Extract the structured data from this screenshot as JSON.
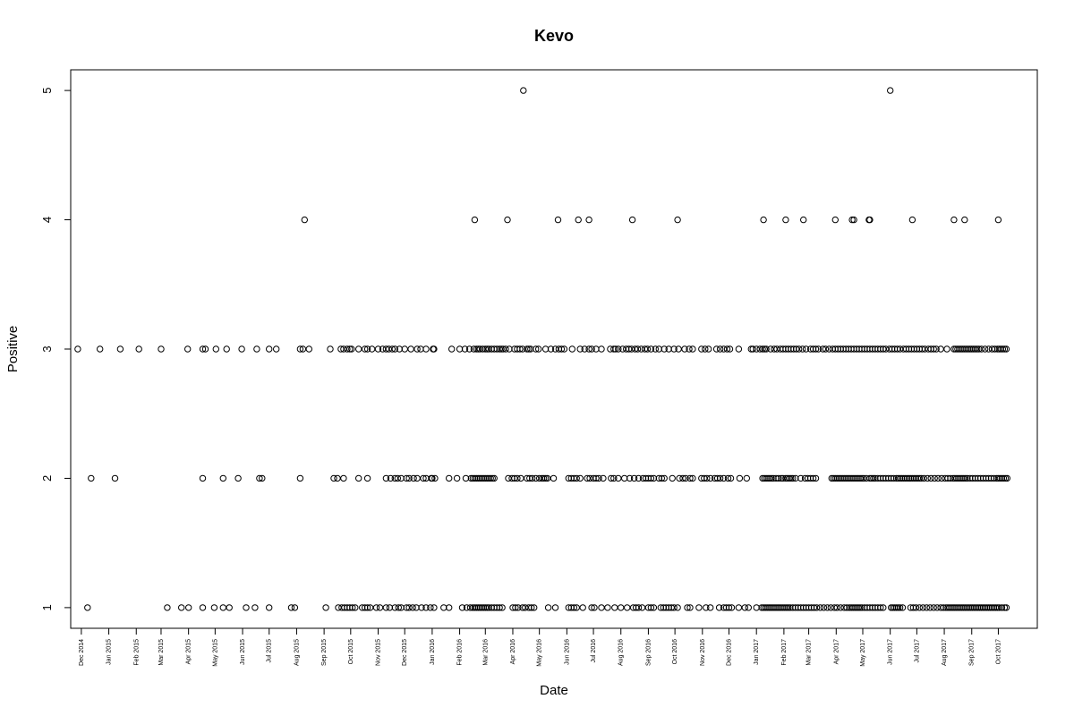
{
  "chart_data": {
    "type": "scatter",
    "title": "Kevo",
    "xlabel": "Date",
    "ylabel": "Positive",
    "xlim": [
      "2014-11-19",
      "2017-11-14"
    ],
    "ylim": [
      0.84,
      5.16
    ],
    "yticks": [
      1,
      2,
      3,
      4,
      5
    ],
    "xticks": [
      {
        "date": "2014-12-01",
        "label": "Dec 2014"
      },
      {
        "date": "2015-01-01",
        "label": "Jan 2015"
      },
      {
        "date": "2015-02-01",
        "label": "Feb 2015"
      },
      {
        "date": "2015-03-01",
        "label": "Mar 2015"
      },
      {
        "date": "2015-04-01",
        "label": "Apr 2015"
      },
      {
        "date": "2015-05-01",
        "label": "May 2015"
      },
      {
        "date": "2015-06-01",
        "label": "Jun 2015"
      },
      {
        "date": "2015-07-01",
        "label": "Jul 2015"
      },
      {
        "date": "2015-08-01",
        "label": "Aug 2015"
      },
      {
        "date": "2015-09-01",
        "label": "Sep 2015"
      },
      {
        "date": "2015-10-01",
        "label": "Oct 2015"
      },
      {
        "date": "2015-11-01",
        "label": "Nov 2015"
      },
      {
        "date": "2015-12-01",
        "label": "Dec 2015"
      },
      {
        "date": "2016-01-01",
        "label": "Jan 2016"
      },
      {
        "date": "2016-02-01",
        "label": "Feb 2016"
      },
      {
        "date": "2016-03-01",
        "label": "Mar 2016"
      },
      {
        "date": "2016-04-01",
        "label": "Apr 2016"
      },
      {
        "date": "2016-05-01",
        "label": "May 2016"
      },
      {
        "date": "2016-06-01",
        "label": "Jun 2016"
      },
      {
        "date": "2016-07-01",
        "label": "Jul 2016"
      },
      {
        "date": "2016-08-01",
        "label": "Aug 2016"
      },
      {
        "date": "2016-09-01",
        "label": "Sep 2016"
      },
      {
        "date": "2016-10-01",
        "label": "Oct 2016"
      },
      {
        "date": "2016-11-01",
        "label": "Nov 2016"
      },
      {
        "date": "2016-12-01",
        "label": "Dec 2016"
      },
      {
        "date": "2017-01-01",
        "label": "Jan 2017"
      },
      {
        "date": "2017-02-01",
        "label": "Feb 2017"
      },
      {
        "date": "2017-03-01",
        "label": "Mar 2017"
      },
      {
        "date": "2017-04-01",
        "label": "Apr 2017"
      },
      {
        "date": "2017-05-01",
        "label": "May 2017"
      },
      {
        "date": "2017-06-01",
        "label": "Jun 2017"
      },
      {
        "date": "2017-07-01",
        "label": "Jul 2017"
      },
      {
        "date": "2017-08-01",
        "label": "Aug 2017"
      },
      {
        "date": "2017-09-01",
        "label": "Sep 2017"
      },
      {
        "date": "2017-10-01",
        "label": "Oct 2017"
      }
    ],
    "grid": false,
    "legend": "none",
    "marker": "open-circle",
    "series": [
      {
        "y": 5,
        "x": [
          "2016-04-13",
          "2017-06-01"
        ]
      },
      {
        "y": 4,
        "x": [
          "2015-08-10",
          "2016-02-18",
          "2016-03-26",
          "2016-05-22",
          "2016-06-14",
          "2016-06-26",
          "2016-08-14",
          "2016-10-04",
          "2017-01-09",
          "2017-02-03",
          "2017-02-23",
          "2017-03-31",
          "2017-04-19",
          "2017-04-21",
          "2017-05-08",
          "2017-05-09",
          "2017-06-26",
          "2017-08-12",
          "2017-08-24",
          "2017-10-01"
        ]
      },
      {
        "y": 3,
        "x": [
          "2014-11-27",
          "2014-12-22",
          "2015-01-14",
          "2015-02-04",
          "2015-03-01",
          "2015-03-31",
          "2015-04-17",
          "2015-04-20",
          "2015-05-02",
          "2015-05-14",
          "2015-05-31",
          "2015-06-17",
          "2015-07-01",
          "2015-07-09",
          "2015-08-05",
          "2015-08-08",
          "2015-08-15",
          "2015-09-08",
          "2015-09-20",
          "2015-09-23",
          "2015-09-27",
          "2015-09-30",
          "2015-10-02",
          "2015-10-10",
          "2015-10-17",
          "2015-10-20",
          "2015-10-25",
          "2015-11-01",
          "2015-11-06",
          "2015-11-10",
          "2015-11-13",
          "2015-11-17",
          "2015-11-20",
          "2015-11-25",
          "2015-12-01",
          "2015-12-08",
          "2015-12-15",
          "2015-12-19",
          "2015-12-25",
          "2016-01-02",
          "2016-01-03",
          "2016-01-23",
          "2016-02-01",
          "2016-02-07",
          "2016-02-12",
          "2016-02-17",
          "2016-02-20",
          "2016-02-22",
          "2016-02-24",
          "2016-02-27",
          "2016-03-01",
          "2016-03-03",
          "2016-03-05",
          "2016-03-08",
          "2016-03-11",
          "2016-03-14",
          "2016-03-17",
          "2016-03-19",
          "2016-03-21",
          "2016-03-24",
          "2016-03-28",
          "2016-04-03",
          "2016-04-06",
          "2016-04-09",
          "2016-04-12",
          "2016-04-17",
          "2016-04-19",
          "2016-04-21",
          "2016-04-27",
          "2016-04-30",
          "2016-05-08",
          "2016-05-14",
          "2016-05-19",
          "2016-05-23",
          "2016-05-26",
          "2016-05-29",
          "2016-06-07",
          "2016-06-16",
          "2016-06-21",
          "2016-06-26",
          "2016-06-29",
          "2016-07-04",
          "2016-07-10",
          "2016-07-20",
          "2016-07-24",
          "2016-07-26",
          "2016-07-29",
          "2016-08-03",
          "2016-08-07",
          "2016-08-10",
          "2016-08-13",
          "2016-08-17",
          "2016-08-20",
          "2016-08-24",
          "2016-08-28",
          "2016-08-31",
          "2016-09-04",
          "2016-09-09",
          "2016-09-13",
          "2016-09-19",
          "2016-09-24",
          "2016-09-30",
          "2016-10-05",
          "2016-10-12",
          "2016-10-17",
          "2016-10-21",
          "2016-10-31",
          "2016-11-04",
          "2016-11-08",
          "2016-11-17",
          "2016-11-21",
          "2016-11-25",
          "2016-11-29",
          "2016-12-02",
          "2016-12-12",
          "2016-12-26",
          "2016-12-28",
          "2017-01-01",
          "2017-01-05",
          "2017-01-08",
          "2017-01-10",
          "2017-01-12",
          "2017-01-17",
          "2017-01-21",
          "2017-01-24",
          "2017-01-28",
          "2017-01-31",
          "2017-02-03",
          "2017-02-06",
          "2017-02-09",
          "2017-02-12",
          "2017-02-15",
          "2017-02-18",
          "2017-02-22",
          "2017-02-26",
          "2017-03-03",
          "2017-03-06",
          "2017-03-09",
          "2017-03-12",
          "2017-03-17",
          "2017-03-20",
          "2017-03-24",
          "2017-03-28",
          "2017-03-31",
          "2017-04-03",
          "2017-04-06",
          "2017-04-09",
          "2017-04-12",
          "2017-04-15",
          "2017-04-18",
          "2017-04-21",
          "2017-04-24",
          "2017-04-27",
          "2017-04-30",
          "2017-05-03",
          "2017-05-06",
          "2017-05-09",
          "2017-05-12",
          "2017-05-15",
          "2017-05-18",
          "2017-05-21",
          "2017-05-24",
          "2017-05-27",
          "2017-05-31",
          "2017-06-03",
          "2017-06-06",
          "2017-06-09",
          "2017-06-12",
          "2017-06-16",
          "2017-06-19",
          "2017-06-22",
          "2017-06-25",
          "2017-06-28",
          "2017-07-01",
          "2017-07-04",
          "2017-07-07",
          "2017-07-10",
          "2017-07-14",
          "2017-07-17",
          "2017-07-20",
          "2017-07-23",
          "2017-07-28",
          "2017-08-04",
          "2017-08-12",
          "2017-08-14",
          "2017-08-16",
          "2017-08-18",
          "2017-08-20",
          "2017-08-22",
          "2017-08-24",
          "2017-08-26",
          "2017-08-28",
          "2017-08-30",
          "2017-09-01",
          "2017-09-03",
          "2017-09-05",
          "2017-09-07",
          "2017-09-09",
          "2017-09-12",
          "2017-09-16",
          "2017-09-20",
          "2017-09-24",
          "2017-09-27",
          "2017-09-30",
          "2017-10-02",
          "2017-10-04",
          "2017-10-06",
          "2017-10-08",
          "2017-10-10"
        ]
      },
      {
        "y": 2,
        "x": [
          "2014-12-12",
          "2015-01-08",
          "2015-04-17",
          "2015-05-10",
          "2015-05-27",
          "2015-06-20",
          "2015-06-23",
          "2015-08-05",
          "2015-09-12",
          "2015-09-16",
          "2015-09-23",
          "2015-10-10",
          "2015-10-20",
          "2015-11-10",
          "2015-11-15",
          "2015-11-20",
          "2015-11-23",
          "2015-11-27",
          "2015-12-03",
          "2015-12-06",
          "2015-12-11",
          "2015-12-15",
          "2015-12-22",
          "2015-12-25",
          "2015-12-31",
          "2016-01-01",
          "2016-01-04",
          "2016-01-20",
          "2016-01-29",
          "2016-02-08",
          "2016-02-14",
          "2016-02-16",
          "2016-02-18",
          "2016-02-20",
          "2016-02-22",
          "2016-02-24",
          "2016-02-26",
          "2016-02-28",
          "2016-03-01",
          "2016-03-03",
          "2016-03-05",
          "2016-03-07",
          "2016-03-09",
          "2016-03-11",
          "2016-03-27",
          "2016-03-31",
          "2016-04-03",
          "2016-04-06",
          "2016-04-10",
          "2016-04-17",
          "2016-04-20",
          "2016-04-23",
          "2016-04-27",
          "2016-05-01",
          "2016-05-04",
          "2016-05-06",
          "2016-05-08",
          "2016-05-10",
          "2016-05-17",
          "2016-06-03",
          "2016-06-06",
          "2016-06-09",
          "2016-06-12",
          "2016-06-16",
          "2016-06-24",
          "2016-06-27",
          "2016-07-01",
          "2016-07-04",
          "2016-07-07",
          "2016-07-12",
          "2016-07-21",
          "2016-07-24",
          "2016-07-29",
          "2016-08-05",
          "2016-08-11",
          "2016-08-16",
          "2016-08-21",
          "2016-08-26",
          "2016-08-29",
          "2016-09-01",
          "2016-09-04",
          "2016-09-07",
          "2016-09-13",
          "2016-09-16",
          "2016-09-19",
          "2016-09-28",
          "2016-10-06",
          "2016-10-10",
          "2016-10-13",
          "2016-10-18",
          "2016-10-21",
          "2016-10-31",
          "2016-11-03",
          "2016-11-06",
          "2016-11-10",
          "2016-11-15",
          "2016-11-18",
          "2016-11-21",
          "2016-11-25",
          "2016-11-30",
          "2016-12-03",
          "2016-12-13",
          "2016-12-21",
          "2017-01-08",
          "2017-01-10",
          "2017-01-12",
          "2017-01-14",
          "2017-01-16",
          "2017-01-18",
          "2017-01-20",
          "2017-01-23",
          "2017-01-26",
          "2017-01-29",
          "2017-01-31",
          "2017-02-03",
          "2017-02-05",
          "2017-02-07",
          "2017-02-09",
          "2017-02-11",
          "2017-02-14",
          "2017-02-20",
          "2017-02-25",
          "2017-02-28",
          "2017-03-03",
          "2017-03-06",
          "2017-03-09",
          "2017-03-27",
          "2017-03-29",
          "2017-03-31",
          "2017-04-02",
          "2017-04-04",
          "2017-04-06",
          "2017-04-08",
          "2017-04-10",
          "2017-04-12",
          "2017-04-14",
          "2017-04-16",
          "2017-04-18",
          "2017-04-20",
          "2017-04-22",
          "2017-04-24",
          "2017-04-26",
          "2017-04-28",
          "2017-04-30",
          "2017-05-02",
          "2017-05-05",
          "2017-05-09",
          "2017-05-11",
          "2017-05-13",
          "2017-05-15",
          "2017-05-18",
          "2017-05-21",
          "2017-05-24",
          "2017-05-27",
          "2017-05-30",
          "2017-06-02",
          "2017-06-05",
          "2017-06-08",
          "2017-06-10",
          "2017-06-12",
          "2017-06-14",
          "2017-06-16",
          "2017-06-18",
          "2017-06-20",
          "2017-06-22",
          "2017-06-24",
          "2017-06-26",
          "2017-06-28",
          "2017-06-30",
          "2017-07-02",
          "2017-07-04",
          "2017-07-06",
          "2017-07-09",
          "2017-07-13",
          "2017-07-17",
          "2017-07-21",
          "2017-07-25",
          "2017-07-29",
          "2017-08-02",
          "2017-08-05",
          "2017-08-08",
          "2017-08-11",
          "2017-08-13",
          "2017-08-15",
          "2017-08-17",
          "2017-08-19",
          "2017-08-21",
          "2017-08-23",
          "2017-08-25",
          "2017-08-27",
          "2017-08-30",
          "2017-09-02",
          "2017-09-05",
          "2017-09-08",
          "2017-09-11",
          "2017-09-14",
          "2017-09-17",
          "2017-09-20",
          "2017-09-23",
          "2017-09-26",
          "2017-09-29",
          "2017-10-01",
          "2017-10-03",
          "2017-10-05",
          "2017-10-07",
          "2017-10-09",
          "2017-10-11"
        ]
      },
      {
        "y": 1,
        "x": [
          "2014-12-08",
          "2015-03-08",
          "2015-03-24",
          "2015-04-01",
          "2015-04-17",
          "2015-04-30",
          "2015-05-10",
          "2015-05-17",
          "2015-06-05",
          "2015-06-15",
          "2015-07-01",
          "2015-07-26",
          "2015-07-30",
          "2015-09-03",
          "2015-09-17",
          "2015-09-21",
          "2015-09-24",
          "2015-09-27",
          "2015-09-30",
          "2015-10-03",
          "2015-10-06",
          "2015-10-14",
          "2015-10-17",
          "2015-10-20",
          "2015-10-23",
          "2015-10-30",
          "2015-11-03",
          "2015-11-10",
          "2015-11-14",
          "2015-11-20",
          "2015-11-24",
          "2015-11-27",
          "2015-12-03",
          "2015-12-06",
          "2015-12-10",
          "2015-12-14",
          "2015-12-20",
          "2015-12-25",
          "2015-12-30",
          "2016-01-03",
          "2016-01-14",
          "2016-01-20",
          "2016-02-04",
          "2016-02-09",
          "2016-02-13",
          "2016-02-16",
          "2016-02-18",
          "2016-02-20",
          "2016-02-22",
          "2016-02-24",
          "2016-02-26",
          "2016-02-28",
          "2016-03-01",
          "2016-03-03",
          "2016-03-05",
          "2016-03-08",
          "2016-03-11",
          "2016-03-14",
          "2016-03-17",
          "2016-03-20",
          "2016-04-01",
          "2016-04-04",
          "2016-04-07",
          "2016-04-12",
          "2016-04-15",
          "2016-04-19",
          "2016-04-22",
          "2016-04-25",
          "2016-05-11",
          "2016-05-19",
          "2016-06-03",
          "2016-06-06",
          "2016-06-09",
          "2016-06-12",
          "2016-06-19",
          "2016-06-29",
          "2016-07-02",
          "2016-07-10",
          "2016-07-17",
          "2016-07-25",
          "2016-08-01",
          "2016-08-08",
          "2016-08-15",
          "2016-08-18",
          "2016-08-21",
          "2016-08-25",
          "2016-09-01",
          "2016-09-04",
          "2016-09-07",
          "2016-09-15",
          "2016-09-18",
          "2016-09-21",
          "2016-09-24",
          "2016-09-27",
          "2016-09-30",
          "2016-10-04",
          "2016-10-15",
          "2016-10-18",
          "2016-10-28",
          "2016-11-05",
          "2016-11-10",
          "2016-11-20",
          "2016-11-25",
          "2016-11-28",
          "2016-12-01",
          "2016-12-04",
          "2016-12-12",
          "2016-12-19",
          "2016-12-23",
          "2017-01-01",
          "2017-01-07",
          "2017-01-09",
          "2017-01-11",
          "2017-01-13",
          "2017-01-15",
          "2017-01-17",
          "2017-01-19",
          "2017-01-21",
          "2017-01-23",
          "2017-01-25",
          "2017-01-27",
          "2017-01-29",
          "2017-01-31",
          "2017-02-02",
          "2017-02-04",
          "2017-02-06",
          "2017-02-08",
          "2017-02-11",
          "2017-02-14",
          "2017-02-17",
          "2017-02-20",
          "2017-02-23",
          "2017-02-26",
          "2017-03-01",
          "2017-03-04",
          "2017-03-07",
          "2017-03-10",
          "2017-03-14",
          "2017-03-18",
          "2017-03-22",
          "2017-03-26",
          "2017-03-30",
          "2017-04-02",
          "2017-04-06",
          "2017-04-10",
          "2017-04-13",
          "2017-04-16",
          "2017-04-18",
          "2017-04-20",
          "2017-04-22",
          "2017-04-24",
          "2017-04-26",
          "2017-04-28",
          "2017-04-30",
          "2017-05-03",
          "2017-05-06",
          "2017-05-09",
          "2017-05-12",
          "2017-05-15",
          "2017-05-18",
          "2017-05-21",
          "2017-05-24",
          "2017-06-02",
          "2017-06-04",
          "2017-06-06",
          "2017-06-08",
          "2017-06-10",
          "2017-06-12",
          "2017-06-15",
          "2017-06-24",
          "2017-06-27",
          "2017-06-30",
          "2017-07-04",
          "2017-07-08",
          "2017-07-12",
          "2017-07-16",
          "2017-07-20",
          "2017-07-24",
          "2017-07-28",
          "2017-07-31",
          "2017-08-03",
          "2017-08-05",
          "2017-08-07",
          "2017-08-09",
          "2017-08-11",
          "2017-08-13",
          "2017-08-15",
          "2017-08-17",
          "2017-08-19",
          "2017-08-21",
          "2017-08-23",
          "2017-08-25",
          "2017-08-27",
          "2017-08-29",
          "2017-08-31",
          "2017-09-02",
          "2017-09-04",
          "2017-09-06",
          "2017-09-08",
          "2017-09-10",
          "2017-09-12",
          "2017-09-14",
          "2017-09-16",
          "2017-09-18",
          "2017-09-20",
          "2017-09-22",
          "2017-09-24",
          "2017-09-26",
          "2017-09-28",
          "2017-09-30",
          "2017-10-02",
          "2017-10-05",
          "2017-10-08",
          "2017-10-10"
        ]
      }
    ]
  }
}
